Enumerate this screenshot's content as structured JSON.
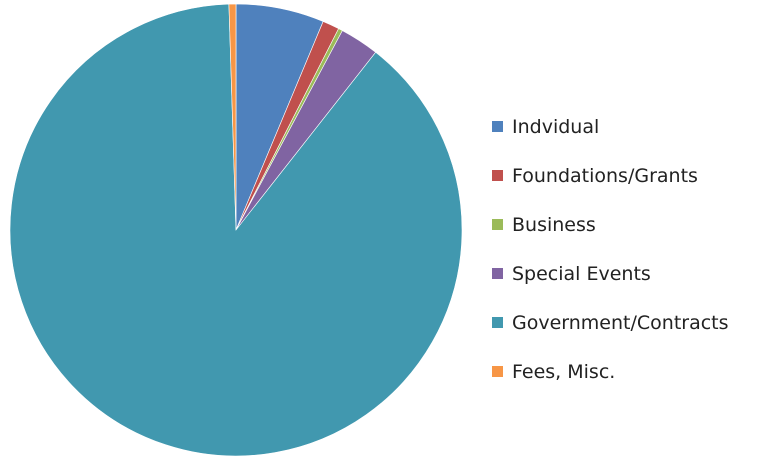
{
  "chart_data": {
    "type": "pie",
    "title": "",
    "legend_position": "right",
    "categories": [
      "Indvidual",
      "Foundations/Grants",
      "Business",
      "Special Events",
      "Government/Contracts",
      "Fees, Misc."
    ],
    "values": [
      6.3,
      1.2,
      0.3,
      2.8,
      88.9,
      0.5
    ],
    "unit": "percent",
    "colors": [
      "#4f81bd",
      "#c0504d",
      "#9bbb59",
      "#8064a2",
      "#4198af",
      "#f79646"
    ]
  }
}
